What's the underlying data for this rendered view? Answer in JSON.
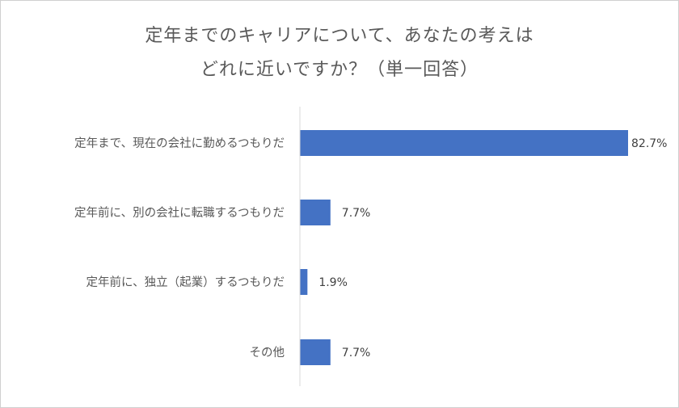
{
  "chart_data": {
    "type": "bar",
    "orientation": "horizontal",
    "title_lines": [
      "定年までのキャリアについて、あなたの考えは",
      "どれに近いですか？（単一回答）"
    ],
    "categories": [
      "定年まで、現在の会社に勤めるつもりだ",
      "定年前に、別の会社に転職するつもりだ",
      "定年前に、独立（起業）するつもりだ",
      "その他"
    ],
    "values": [
      82.7,
      7.7,
      1.9,
      7.7
    ],
    "data_labels": [
      "82.7%",
      "7.7%",
      "1.9%",
      "7.7%"
    ],
    "unit": "%",
    "xlim": [
      0,
      100
    ],
    "grid": false,
    "legend": "none",
    "bar_color": "#4472C4"
  }
}
